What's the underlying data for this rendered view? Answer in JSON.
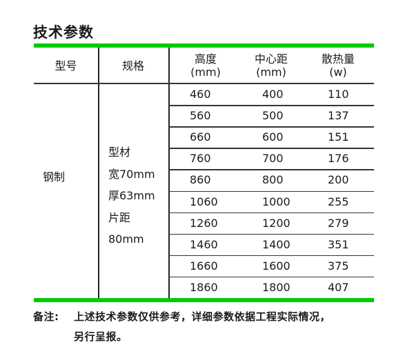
{
  "title": "技术参数",
  "headers": {
    "model": "型号",
    "spec": "规格",
    "height": {
      "line1": "高度",
      "line2": "(mm)"
    },
    "center": {
      "line1": "中心距",
      "line2": "(mm)"
    },
    "heat": {
      "line1": "散热量",
      "line2": "(w)"
    }
  },
  "model": "钢制",
  "spec_lines": [
    "型材",
    "宽70mm",
    "厚63mm",
    "片距",
    "80mm"
  ],
  "rows": [
    [
      "460",
      "400",
      "110"
    ],
    [
      "560",
      "500",
      "137"
    ],
    [
      "660",
      "600",
      "151"
    ],
    [
      "760",
      "700",
      "176"
    ],
    [
      "860",
      "800",
      "200"
    ],
    [
      "1060",
      "1000",
      "255"
    ],
    [
      "1260",
      "1200",
      "279"
    ],
    [
      "1460",
      "1400",
      "351"
    ],
    [
      "1660",
      "1600",
      "375"
    ],
    [
      "1860",
      "1800",
      "407"
    ]
  ],
  "note": {
    "label": "备注:",
    "line1": "上述技术参数仅供参考，详细参数依据工程实际情况，",
    "line2": "另行呈报。"
  },
  "colors": {
    "accent": "#00cc00"
  }
}
